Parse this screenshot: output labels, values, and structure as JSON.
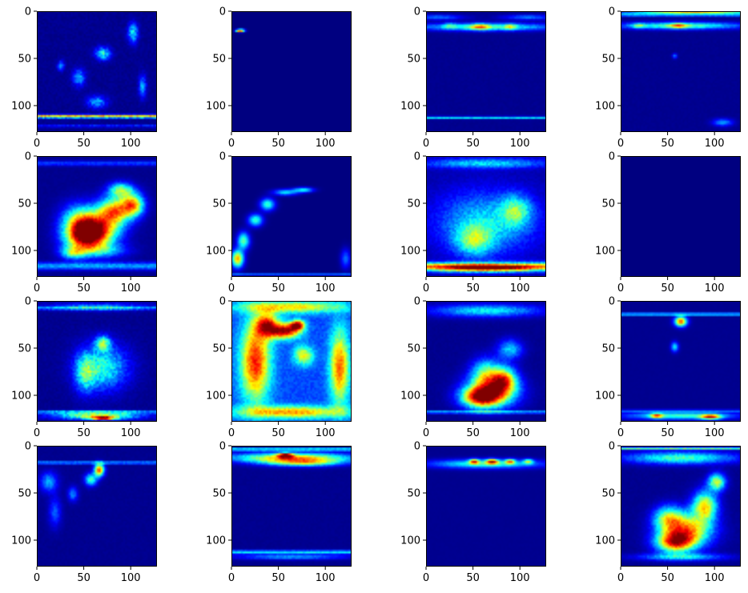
{
  "chart_data": {
    "type": "heatmap",
    "colormap": "jet",
    "grid": false,
    "layout": {
      "rows": 4,
      "cols": 4
    },
    "xticks": [
      0,
      50,
      100
    ],
    "yticks": [
      0,
      50,
      100
    ],
    "xlim": [
      0,
      128
    ],
    "ylim": [
      128,
      0
    ],
    "panels": [
      {
        "blobs": [
          [
            0.55,
            0.35,
            0.06,
            0.05,
            0.5
          ],
          [
            0.8,
            0.18,
            0.04,
            0.08,
            0.45
          ],
          [
            0.35,
            0.55,
            0.05,
            0.07,
            0.35
          ],
          [
            0.5,
            0.75,
            0.08,
            0.05,
            0.35
          ],
          [
            0.88,
            0.62,
            0.03,
            0.09,
            0.35
          ],
          [
            0.2,
            0.45,
            0.03,
            0.04,
            0.3
          ]
        ],
        "hlines": [
          [
            0.87,
            0.013,
            0.85
          ],
          [
            0.95,
            0.01,
            0.2
          ]
        ],
        "floor": 0.02,
        "speckle": 0.25
      },
      {
        "blobs": [
          [
            0.08,
            0.16,
            0.03,
            0.012,
            1.0
          ],
          [
            0.05,
            0.16,
            0.02,
            0.008,
            0.6
          ]
        ],
        "hlines": [],
        "floor": 0.0,
        "speckle": 0
      },
      {
        "blobs": [
          [
            0.5,
            0.13,
            0.55,
            0.03,
            0.55
          ],
          [
            0.45,
            0.13,
            0.08,
            0.025,
            0.5
          ],
          [
            0.7,
            0.13,
            0.05,
            0.025,
            0.35
          ],
          [
            0.2,
            0.12,
            0.05,
            0.025,
            0.25
          ],
          [
            0.1,
            0.05,
            0.2,
            0.02,
            0.3
          ],
          [
            0.85,
            0.05,
            0.2,
            0.02,
            0.3
          ]
        ],
        "hlines": [
          [
            0.88,
            0.01,
            0.3
          ],
          [
            0.88,
            0.005,
            0.2
          ]
        ],
        "floor": 0.02,
        "speckle": 0.1
      },
      {
        "blobs": [
          [
            0.5,
            0.12,
            0.5,
            0.028,
            0.6
          ],
          [
            0.48,
            0.12,
            0.07,
            0.02,
            0.45
          ],
          [
            0.15,
            0.12,
            0.05,
            0.02,
            0.35
          ],
          [
            0.6,
            0.01,
            0.5,
            0.01,
            0.9
          ],
          [
            0.45,
            0.37,
            0.02,
            0.02,
            0.3
          ],
          [
            0.85,
            0.92,
            0.08,
            0.03,
            0.35
          ]
        ],
        "hlines": [
          [
            0.03,
            0.01,
            0.55
          ]
        ],
        "floor": 0.02,
        "speckle": 0.1
      },
      {
        "blobs": [
          [
            0.5,
            0.6,
            0.18,
            0.13,
            0.95
          ],
          [
            0.4,
            0.68,
            0.16,
            0.11,
            0.8
          ],
          [
            0.65,
            0.45,
            0.14,
            0.11,
            0.85
          ],
          [
            0.8,
            0.4,
            0.09,
            0.09,
            0.8
          ],
          [
            0.35,
            0.55,
            0.14,
            0.14,
            0.6
          ],
          [
            0.55,
            0.78,
            0.2,
            0.06,
            0.35
          ],
          [
            0.7,
            0.28,
            0.1,
            0.06,
            0.6
          ],
          [
            0.3,
            0.8,
            0.1,
            0.05,
            0.5
          ]
        ],
        "hlines": [
          [
            0.91,
            0.03,
            0.35
          ],
          [
            0.06,
            0.02,
            0.22
          ]
        ],
        "floor": 0.02,
        "speckle": 0.12
      },
      {
        "blobs": [
          [
            0.05,
            0.85,
            0.05,
            0.07,
            0.9
          ],
          [
            0.1,
            0.7,
            0.05,
            0.07,
            0.6
          ],
          [
            0.2,
            0.53,
            0.06,
            0.05,
            0.55
          ],
          [
            0.3,
            0.4,
            0.06,
            0.05,
            0.55
          ],
          [
            0.45,
            0.3,
            0.1,
            0.025,
            0.45
          ],
          [
            0.6,
            0.28,
            0.08,
            0.02,
            0.5
          ],
          [
            0.95,
            0.85,
            0.04,
            0.08,
            0.3
          ]
        ],
        "hlines": [
          [
            0.98,
            0.01,
            0.3
          ]
        ],
        "floor": 0.0,
        "speckle": 0.05
      },
      {
        "blobs": [
          [
            0.5,
            0.55,
            0.4,
            0.25,
            0.4
          ],
          [
            0.5,
            0.93,
            0.5,
            0.03,
            0.85
          ],
          [
            0.5,
            0.06,
            0.5,
            0.04,
            0.4
          ],
          [
            0.4,
            0.7,
            0.15,
            0.12,
            0.45
          ],
          [
            0.75,
            0.45,
            0.12,
            0.12,
            0.42
          ]
        ],
        "hlines": [
          [
            0.91,
            0.03,
            0.7
          ]
        ],
        "floor": 0.05,
        "speckle": 0.15
      },
      {
        "blobs": [],
        "hlines": [],
        "floor": 0.0,
        "speckle": 0
      },
      {
        "blobs": [
          [
            0.55,
            0.55,
            0.2,
            0.18,
            0.5
          ],
          [
            0.5,
            0.95,
            0.35,
            0.03,
            0.7
          ],
          [
            0.55,
            0.97,
            0.1,
            0.015,
            1.0
          ],
          [
            0.5,
            0.05,
            0.4,
            0.03,
            0.35
          ],
          [
            0.55,
            0.35,
            0.06,
            0.06,
            0.55
          ],
          [
            0.4,
            0.6,
            0.08,
            0.15,
            0.4
          ]
        ],
        "hlines": [
          [
            0.06,
            0.01,
            0.3
          ],
          [
            0.92,
            0.01,
            0.4
          ]
        ],
        "floor": 0.02,
        "speckle": 0.2
      },
      {
        "blobs": [
          [
            0.2,
            0.5,
            0.12,
            0.32,
            0.85
          ],
          [
            0.45,
            0.25,
            0.12,
            0.06,
            0.95
          ],
          [
            0.55,
            0.2,
            0.06,
            0.04,
            0.95
          ],
          [
            0.3,
            0.2,
            0.1,
            0.1,
            0.8
          ],
          [
            0.9,
            0.55,
            0.08,
            0.3,
            0.75
          ],
          [
            0.6,
            0.45,
            0.08,
            0.08,
            0.55
          ],
          [
            0.5,
            0.92,
            0.45,
            0.05,
            0.7
          ],
          [
            0.5,
            0.05,
            0.45,
            0.05,
            0.6
          ]
        ],
        "hlines": [],
        "floor": 0.25,
        "speckle": 0.12
      },
      {
        "blobs": [
          [
            0.55,
            0.75,
            0.2,
            0.12,
            0.9
          ],
          [
            0.45,
            0.8,
            0.15,
            0.08,
            0.85
          ],
          [
            0.65,
            0.65,
            0.1,
            0.1,
            0.75
          ],
          [
            0.5,
            0.6,
            0.12,
            0.12,
            0.55
          ],
          [
            0.5,
            0.08,
            0.45,
            0.05,
            0.45
          ],
          [
            0.7,
            0.4,
            0.1,
            0.08,
            0.4
          ]
        ],
        "hlines": [
          [
            0.92,
            0.01,
            0.45
          ]
        ],
        "floor": 0.02,
        "speckle": 0.12
      },
      {
        "blobs": [
          [
            0.5,
            0.17,
            0.05,
            0.04,
            1.0
          ],
          [
            0.45,
            0.38,
            0.03,
            0.04,
            0.45
          ],
          [
            0.5,
            0.95,
            0.45,
            0.03,
            0.55
          ],
          [
            0.75,
            0.96,
            0.08,
            0.02,
            0.85
          ],
          [
            0.3,
            0.95,
            0.05,
            0.02,
            0.65
          ]
        ],
        "hlines": [
          [
            0.11,
            0.01,
            0.55
          ],
          [
            0.91,
            0.01,
            0.25
          ]
        ],
        "floor": 0.02,
        "speckle": 0.05
      },
      {
        "blobs": [
          [
            0.52,
            0.2,
            0.04,
            0.05,
            1.0
          ],
          [
            0.45,
            0.28,
            0.05,
            0.05,
            0.55
          ],
          [
            0.1,
            0.3,
            0.07,
            0.08,
            0.35
          ],
          [
            0.15,
            0.55,
            0.05,
            0.12,
            0.25
          ],
          [
            0.3,
            0.4,
            0.04,
            0.06,
            0.3
          ]
        ],
        "hlines": [
          [
            0.14,
            0.01,
            0.45
          ]
        ],
        "floor": 0.02,
        "speckle": 0.12
      },
      {
        "blobs": [
          [
            0.5,
            0.1,
            0.5,
            0.04,
            0.85
          ],
          [
            0.45,
            0.08,
            0.06,
            0.02,
            0.95
          ],
          [
            0.6,
            0.14,
            0.3,
            0.03,
            0.6
          ],
          [
            0.5,
            0.92,
            0.45,
            0.02,
            0.35
          ]
        ],
        "hlines": [
          [
            0.88,
            0.015,
            0.45
          ],
          [
            0.03,
            0.01,
            0.6
          ]
        ],
        "floor": 0.02,
        "speckle": 0.1
      },
      {
        "blobs": [
          [
            0.5,
            0.15,
            0.45,
            0.035,
            0.55
          ],
          [
            0.55,
            0.13,
            0.05,
            0.02,
            0.9
          ],
          [
            0.4,
            0.13,
            0.04,
            0.02,
            0.8
          ],
          [
            0.7,
            0.13,
            0.04,
            0.02,
            0.7
          ],
          [
            0.85,
            0.13,
            0.04,
            0.02,
            0.55
          ]
        ],
        "hlines": [],
        "floor": 0.02,
        "speckle": 0.05
      },
      {
        "blobs": [
          [
            0.55,
            0.7,
            0.2,
            0.13,
            0.9
          ],
          [
            0.45,
            0.8,
            0.15,
            0.08,
            0.9
          ],
          [
            0.7,
            0.5,
            0.1,
            0.12,
            0.8
          ],
          [
            0.8,
            0.3,
            0.07,
            0.07,
            0.7
          ],
          [
            0.4,
            0.6,
            0.12,
            0.1,
            0.6
          ],
          [
            0.5,
            0.1,
            0.45,
            0.05,
            0.55
          ],
          [
            0.5,
            0.92,
            0.35,
            0.03,
            0.4
          ]
        ],
        "hlines": [
          [
            0.02,
            0.01,
            0.6
          ]
        ],
        "floor": 0.02,
        "speckle": 0.12
      }
    ]
  }
}
